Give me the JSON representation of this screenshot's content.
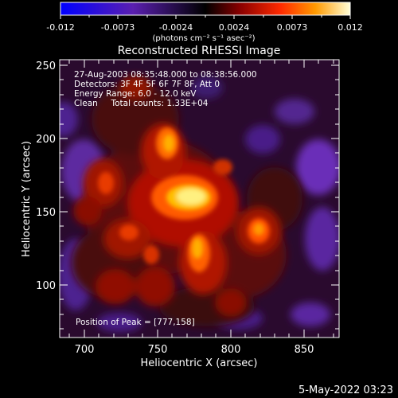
{
  "colorbar": {
    "tick_labels": [
      "-0.012",
      "-0.0073",
      "-0.0024",
      "0.0024",
      "0.0073",
      "0.012"
    ],
    "unit_label": "(photons cm⁻² s⁻¹ asec⁻²)"
  },
  "image": {
    "title": "Reconstructed RHESSI Image",
    "info_lines": [
      "27-Aug-2003 08:35:48.000 to 08:38:56.000",
      "Detectors: 3F 4F 5F 6F 7F 8F, Att 0",
      "Energy Range: 6.0 - 12.0 keV",
      "Clean     Total counts: 1.33E+04"
    ],
    "peak_label": "Position of Peak = [777,158]"
  },
  "axes": {
    "xlabel": "Heliocentric X (arcsec)",
    "ylabel": "Heliocentric Y (arcsec)",
    "x_ticks": [
      "700",
      "750",
      "800",
      "850"
    ],
    "y_ticks": [
      "100",
      "150",
      "200",
      "250"
    ]
  },
  "footer": {
    "timestamp": "5-May-2022 03:23"
  }
}
